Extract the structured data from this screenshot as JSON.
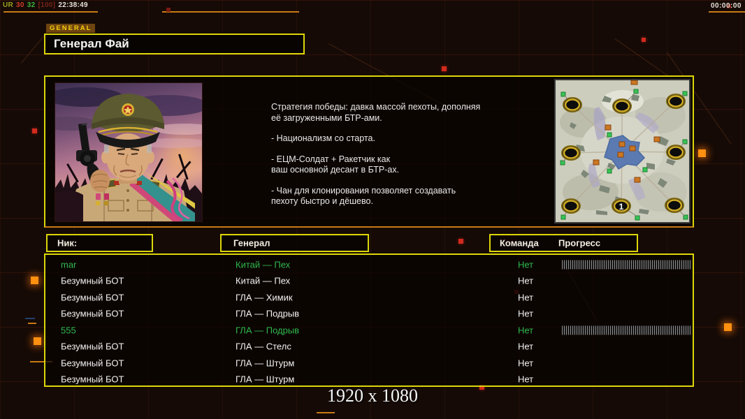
{
  "statusbar": {
    "segments": [
      {
        "text": "UR",
        "color": "#9aa21e"
      },
      {
        "text": "30",
        "color": "#d23b2a"
      },
      {
        "text": "32",
        "color": "#3db53d"
      },
      {
        "text": "[100]",
        "color": "#7a241a"
      },
      {
        "text": "22:38:49",
        "color": "#e6e0d6"
      }
    ],
    "match_timer": "00:00:00"
  },
  "header": {
    "tab_label": "GENERAL",
    "title": "Генерал Фай"
  },
  "briefing": {
    "paragraphs": [
      "Стратегия победы: давка массой пехоты, дополняя\n её загруженными БТР-ами.",
      "- Национализм со старта.",
      "- ЕЦМ-Солдат + Ракетчик как\nваш основной десант в БТР-ах.",
      "- Чан для клонирования позволяет создавать\n пехоту быстро и дёшево."
    ]
  },
  "minimap": {
    "position_label": "1"
  },
  "roster": {
    "headers": {
      "nick": "Ник:",
      "general": "Генерал",
      "team": "Команда",
      "progress": "Прогресс"
    },
    "players": [
      {
        "nick": "mar",
        "general": "Китай — Пех",
        "team": "Нет",
        "is_human": true,
        "has_progress": true
      },
      {
        "nick": "Безумный БОТ",
        "general": "Китай — Пех",
        "team": "Нет",
        "is_human": false,
        "has_progress": false
      },
      {
        "nick": "Безумный БОТ",
        "general": "ГЛА — Химик",
        "team": "Нет",
        "is_human": false,
        "has_progress": false
      },
      {
        "nick": "Безумный БОТ",
        "general": "ГЛА — Подрыв",
        "team": "Нет",
        "is_human": false,
        "has_progress": false
      },
      {
        "nick": "555",
        "general": "ГЛА — Подрыв",
        "team": "Нет",
        "is_human": true,
        "has_progress": true
      },
      {
        "nick": "Безумный БОТ",
        "general": "ГЛА — Стелс",
        "team": "Нет",
        "is_human": false,
        "has_progress": false
      },
      {
        "nick": "Безумный БОТ",
        "general": "ГЛА — Штурм",
        "team": "Нет",
        "is_human": false,
        "has_progress": false
      },
      {
        "nick": "Безумный БОТ",
        "general": "ГЛА — Штурм",
        "team": "Нет",
        "is_human": false,
        "has_progress": false
      }
    ]
  },
  "footer": {
    "resolution": "1920 x 1080"
  },
  "colors": {
    "accent_yellow": "#ddd60a",
    "human_green": "#2eb84d",
    "bot_white": "#f2f2f2",
    "line_orange": "#c87a14"
  }
}
